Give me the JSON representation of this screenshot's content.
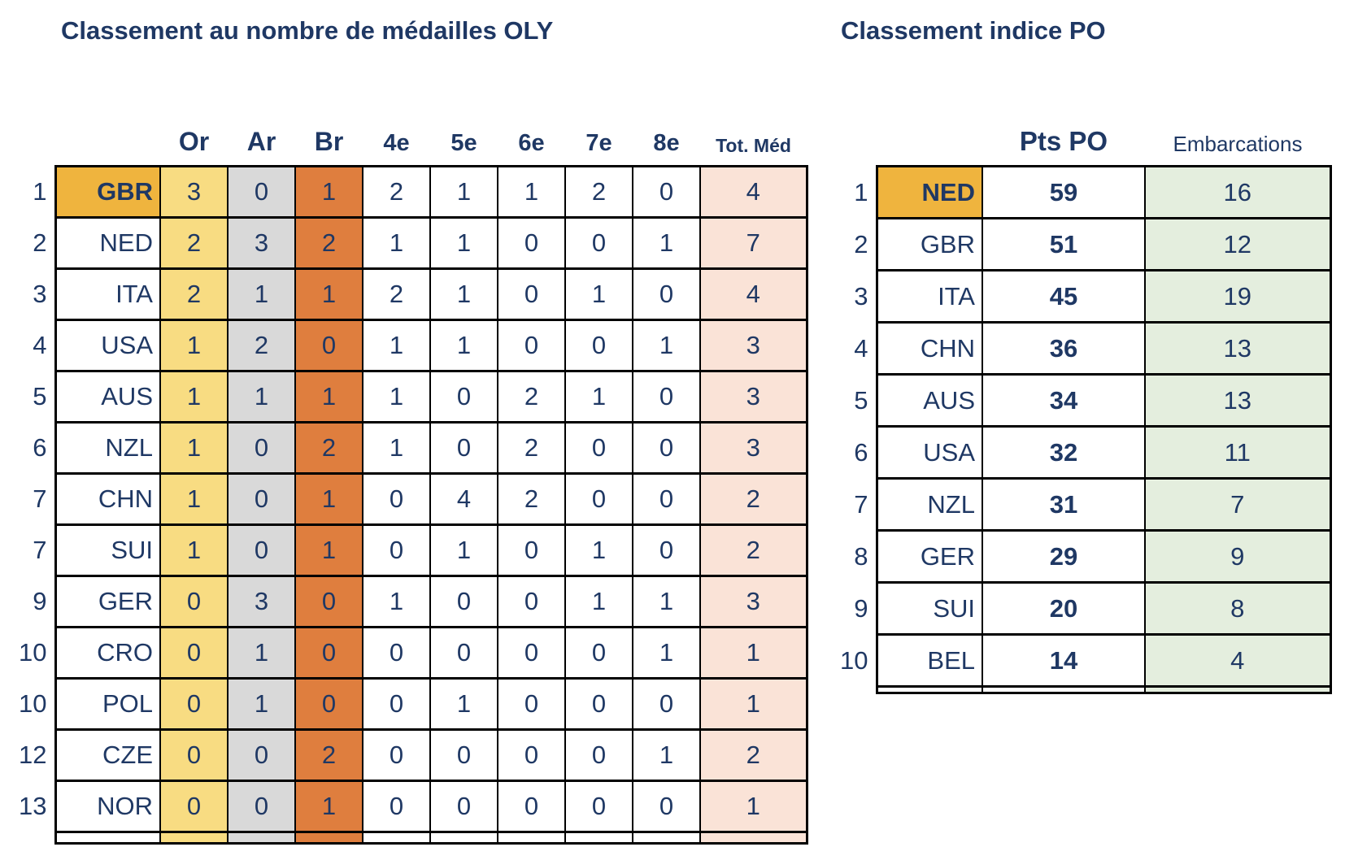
{
  "left": {
    "title": "Classement au nombre de médailles OLY",
    "headers": [
      "Or",
      "Ar",
      "Br",
      "4e",
      "5e",
      "6e",
      "7e",
      "8e",
      "Tot. Méd"
    ],
    "rows": [
      {
        "rank": 1,
        "country": "GBR",
        "leader": true,
        "values": [
          3,
          0,
          1,
          2,
          1,
          1,
          2,
          0,
          4
        ]
      },
      {
        "rank": 2,
        "country": "NED",
        "leader": false,
        "values": [
          2,
          3,
          2,
          1,
          1,
          0,
          0,
          1,
          7
        ]
      },
      {
        "rank": 3,
        "country": "ITA",
        "leader": false,
        "values": [
          2,
          1,
          1,
          2,
          1,
          0,
          1,
          0,
          4
        ]
      },
      {
        "rank": 4,
        "country": "USA",
        "leader": false,
        "values": [
          1,
          2,
          0,
          1,
          1,
          0,
          0,
          1,
          3
        ]
      },
      {
        "rank": 5,
        "country": "AUS",
        "leader": false,
        "values": [
          1,
          1,
          1,
          1,
          0,
          2,
          1,
          0,
          3
        ]
      },
      {
        "rank": 6,
        "country": "NZL",
        "leader": false,
        "values": [
          1,
          0,
          2,
          1,
          0,
          2,
          0,
          0,
          3
        ]
      },
      {
        "rank": 7,
        "country": "CHN",
        "leader": false,
        "values": [
          1,
          0,
          1,
          0,
          4,
          2,
          0,
          0,
          2
        ]
      },
      {
        "rank": 7,
        "country": "SUI",
        "leader": false,
        "values": [
          1,
          0,
          1,
          0,
          1,
          0,
          1,
          0,
          2
        ]
      },
      {
        "rank": 9,
        "country": "GER",
        "leader": false,
        "values": [
          0,
          3,
          0,
          1,
          0,
          0,
          1,
          1,
          3
        ]
      },
      {
        "rank": 10,
        "country": "CRO",
        "leader": false,
        "values": [
          0,
          1,
          0,
          0,
          0,
          0,
          0,
          1,
          1
        ]
      },
      {
        "rank": 10,
        "country": "POL",
        "leader": false,
        "values": [
          0,
          1,
          0,
          0,
          1,
          0,
          0,
          0,
          1
        ]
      },
      {
        "rank": 12,
        "country": "CZE",
        "leader": false,
        "values": [
          0,
          0,
          2,
          0,
          0,
          0,
          0,
          1,
          2
        ]
      },
      {
        "rank": 13,
        "country": "NOR",
        "leader": false,
        "values": [
          0,
          0,
          1,
          0,
          0,
          0,
          0,
          0,
          1
        ]
      }
    ]
  },
  "right": {
    "title": "Classement indice PO",
    "headers": [
      "Pts PO",
      "Embarcations"
    ],
    "rows": [
      {
        "rank": 1,
        "country": "NED",
        "leader": true,
        "values": [
          59,
          16
        ]
      },
      {
        "rank": 2,
        "country": "GBR",
        "leader": false,
        "values": [
          51,
          12
        ]
      },
      {
        "rank": 3,
        "country": "ITA",
        "leader": false,
        "values": [
          45,
          19
        ]
      },
      {
        "rank": 4,
        "country": "CHN",
        "leader": false,
        "values": [
          36,
          13
        ]
      },
      {
        "rank": 5,
        "country": "AUS",
        "leader": false,
        "values": [
          34,
          13
        ]
      },
      {
        "rank": 6,
        "country": "USA",
        "leader": false,
        "values": [
          32,
          11
        ]
      },
      {
        "rank": 7,
        "country": "NZL",
        "leader": false,
        "values": [
          31,
          7
        ]
      },
      {
        "rank": 8,
        "country": "GER",
        "leader": false,
        "values": [
          29,
          9
        ]
      },
      {
        "rank": 9,
        "country": "SUI",
        "leader": false,
        "values": [
          20,
          8
        ]
      },
      {
        "rank": 10,
        "country": "BEL",
        "leader": false,
        "values": [
          14,
          4
        ]
      }
    ]
  },
  "colors": {
    "text_navy": "#1F3864",
    "leader_gold": "#EFB43E",
    "gold_column": "#F8DC82",
    "silver_column": "#D9D9D9",
    "bronze_column": "#DF7E3E",
    "total_column": "#FAE3D7",
    "embarcations_column": "#E4EEDE",
    "grid_black": "#000000"
  }
}
